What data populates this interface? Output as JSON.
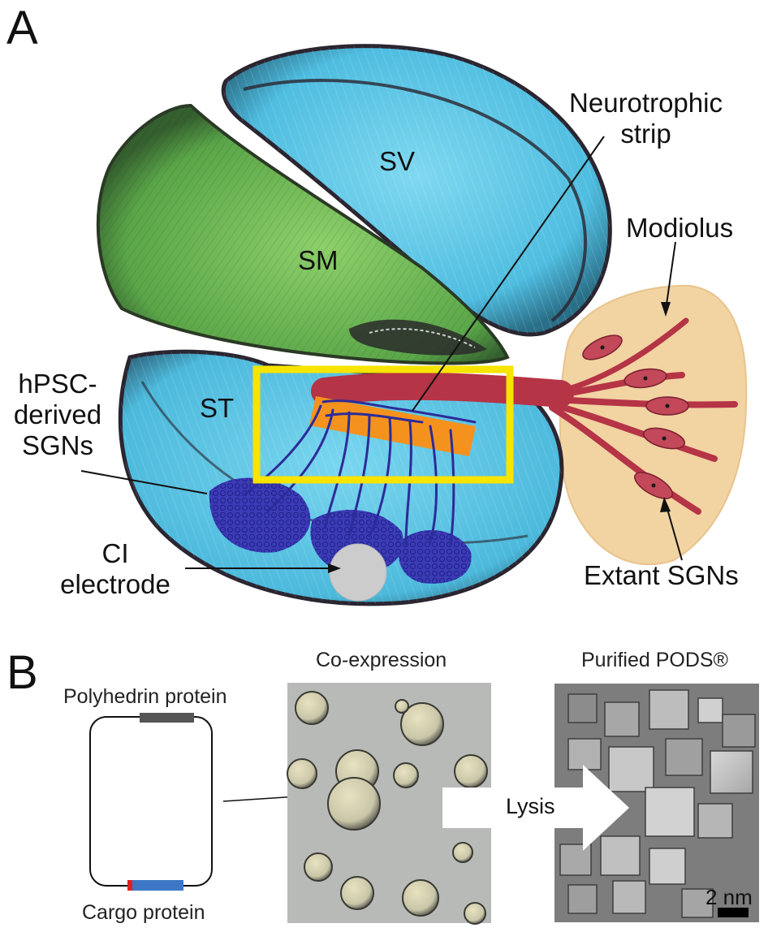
{
  "panel_a": {
    "letter": "A",
    "labels": {
      "sv": "SV",
      "sm": "SM",
      "st": "ST",
      "neurotrophic_line1": "Neurotrophic",
      "neurotrophic_line2": "strip",
      "modiolus": "Modiolus",
      "hpsc_line1": "hPSC-",
      "hpsc_line2": "derived",
      "hpsc_line3": "SGNs",
      "ci_line1": "CI",
      "ci_line2": "electrode",
      "extant": "Extant SGNs"
    },
    "colors": {
      "scala_vestibuli": "#5fc7e6",
      "scala_media": "#6fbf55",
      "scala_tympani": "#5fc7e6",
      "outline_ink": "#2a2530",
      "highlight_box": "#f7e400",
      "strip": "#f5921e",
      "nerve": "#b53446",
      "derived_cells": "#3a3ab0",
      "modiolus": "#f2d3a2",
      "electrode": "#cccccc"
    }
  },
  "panel_b": {
    "letter": "B",
    "plasmid": {
      "top_label": "Polyhedrin protein",
      "bottom_label": "Cargo protein"
    },
    "micrograph_left_title": "Co-expression",
    "micrograph_right_title": "Purified PODS®",
    "arrow_label": "Lysis",
    "scale_bar_label": "2 nm",
    "colors": {
      "polyhedrin_gene": "#555555",
      "cargo_gene": "#3d78c8",
      "cargo_tag": "#e02020",
      "micro_left_bg": "#b8bab7",
      "micro_right_bg": "#7d7d7d"
    }
  }
}
